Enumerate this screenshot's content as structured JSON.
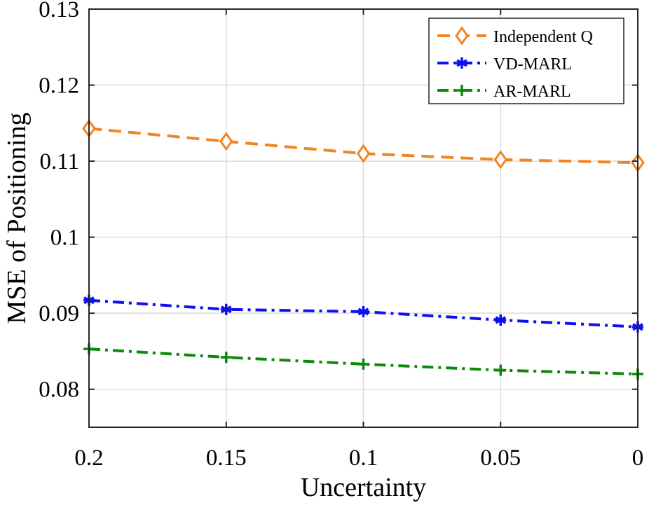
{
  "chart_data": {
    "type": "line",
    "title": "",
    "xlabel": "Uncertainty",
    "ylabel": "MSE of Positioning",
    "x": [
      0.2,
      0.15,
      0.1,
      0.05,
      0
    ],
    "x_tick_labels": [
      "0.2",
      "0.15",
      "0.1",
      "0.05",
      "0"
    ],
    "x_reversed": true,
    "xlim": [
      0.2,
      0
    ],
    "ylim": [
      0.075,
      0.13
    ],
    "y_ticks": [
      0.08,
      0.09,
      0.1,
      0.11,
      0.12,
      0.13
    ],
    "y_tick_labels": [
      "0.08",
      "0.09",
      "0.1",
      "0.11",
      "0.12",
      "0.13"
    ],
    "grid": true,
    "legend_position": "top-right",
    "series": [
      {
        "name": "Independent Q",
        "values": [
          0.1143,
          0.1126,
          0.111,
          0.1102,
          0.1098
        ],
        "color": "#f28522",
        "line_style": "dashed",
        "marker": "diamond"
      },
      {
        "name": "VD-MARL",
        "values": [
          0.0917,
          0.0905,
          0.0902,
          0.0891,
          0.0882
        ],
        "color": "#0f0ff0",
        "line_style": "dash-dot",
        "marker": "asterisk"
      },
      {
        "name": "AR-MARL",
        "values": [
          0.0853,
          0.0842,
          0.0833,
          0.0825,
          0.082
        ],
        "color": "#0b8a0b",
        "line_style": "dash-dot",
        "marker": "plus"
      }
    ]
  }
}
